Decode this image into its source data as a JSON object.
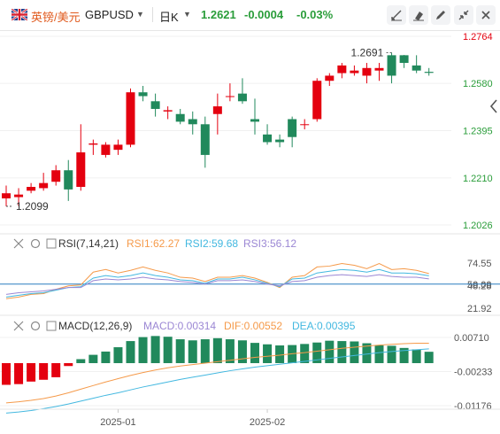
{
  "toolbar": {
    "name": "英镑/美元",
    "symbol": "GBPUSD",
    "period": "日K",
    "price": "1.2621",
    "change": "-0.0004",
    "change_pct": "-0.03%",
    "icons": [
      "draw-tool-icon",
      "eraser-icon",
      "pencil-icon",
      "collapse-icon",
      "close-icon"
    ]
  },
  "colors": {
    "up": "#e4000f",
    "down": "#21895c",
    "rsi1": "#f59a4a",
    "rsi2": "#43b8e0",
    "rsi3": "#9b87d4",
    "macd": "#9b87d4",
    "dif": "#f59a4a",
    "dea": "#43b8e0",
    "price_axis": "#e4000f",
    "axis_text": "#2a9d3a"
  },
  "price_panel": {
    "y_ticks": [
      "1.2764",
      "1.2580",
      "1.2395",
      "1.2210",
      "1.2026"
    ],
    "ylim": [
      1.2026,
      1.2764
    ],
    "high_label": "1.2691",
    "low_label": "1.2099"
  },
  "rsi_panel": {
    "title": "RSI(7,14,21)",
    "rsi1_label": "RSI1:62.27",
    "rsi2_label": "RSI2:59.68",
    "rsi3_label": "RSI3:56.12",
    "y_ticks": [
      "74.55",
      "50.00",
      "48.28",
      "21.92"
    ],
    "ylim": [
      21.92,
      74.55
    ],
    "midline": 50
  },
  "macd_panel": {
    "title": "MACD(12,26,9)",
    "macd_label": "MACD:0.00314",
    "dif_label": "DIF:0.00552",
    "dea_label": "DEA:0.00395",
    "y_ticks": [
      "0.00710",
      "-0.00233",
      "-0.01176"
    ],
    "ylim": [
      -0.01176,
      0.0071
    ]
  },
  "x_axis": {
    "labels": [
      "2025-01",
      "2025-02"
    ],
    "label_index": [
      9,
      21
    ]
  },
  "chart_data": {
    "type": "candlestick",
    "series": [
      {
        "name": "K",
        "values": [
          [
            1.213,
            1.218,
            1.2099,
            1.215
          ],
          [
            1.2135,
            1.217,
            1.21,
            1.2145
          ],
          [
            1.216,
            1.219,
            1.215,
            1.2175
          ],
          [
            1.217,
            1.223,
            1.216,
            1.219
          ],
          [
            1.2195,
            1.226,
            1.218,
            1.224
          ],
          [
            1.224,
            1.228,
            1.212,
            1.2165
          ],
          [
            1.2175,
            1.242,
            1.216,
            1.231
          ],
          [
            1.234,
            1.236,
            1.23,
            1.2345
          ],
          [
            1.23,
            1.235,
            1.229,
            1.234
          ],
          [
            1.232,
            1.236,
            1.23,
            1.234
          ],
          [
            1.234,
            1.256,
            1.233,
            1.2545
          ],
          [
            1.2545,
            1.257,
            1.251,
            1.253
          ],
          [
            1.251,
            1.254,
            1.245,
            1.248
          ],
          [
            1.247,
            1.249,
            1.244,
            1.2475
          ],
          [
            1.246,
            1.248,
            1.242,
            1.243
          ],
          [
            1.244,
            1.247,
            1.238,
            1.242
          ],
          [
            1.242,
            1.245,
            1.225,
            1.23
          ],
          [
            1.246,
            1.254,
            1.238,
            1.249
          ],
          [
            1.253,
            1.258,
            1.251,
            1.253
          ],
          [
            1.254,
            1.26,
            1.25,
            1.251
          ],
          [
            1.244,
            1.252,
            1.238,
            1.243
          ],
          [
            1.238,
            1.242,
            1.234,
            1.235
          ],
          [
            1.236,
            1.238,
            1.233,
            1.235
          ],
          [
            1.244,
            1.245,
            1.233,
            1.237
          ],
          [
            1.242,
            1.244,
            1.24,
            1.242
          ],
          [
            1.244,
            1.26,
            1.243,
            1.259
          ],
          [
            1.259,
            1.262,
            1.257,
            1.261
          ],
          [
            1.262,
            1.266,
            1.26,
            1.265
          ],
          [
            1.262,
            1.265,
            1.261,
            1.263
          ],
          [
            1.261,
            1.266,
            1.258,
            1.264
          ],
          [
            1.263,
            1.266,
            1.259,
            1.264
          ],
          [
            1.269,
            1.27,
            1.258,
            1.261
          ],
          [
            1.269,
            1.2691,
            1.264,
            1.266
          ],
          [
            1.265,
            1.269,
            1.262,
            1.263
          ],
          [
            1.2625,
            1.264,
            1.261,
            1.2621
          ]
        ]
      },
      {
        "name": "RSI1",
        "values": [
          33,
          35,
          38,
          39,
          44,
          48,
          49,
          64,
          67,
          63,
          66,
          70,
          66,
          63,
          58,
          57,
          53,
          58,
          58,
          60,
          57,
          52,
          46,
          58,
          60,
          70,
          71,
          74,
          72,
          68,
          74,
          67,
          68,
          66,
          62.27
        ]
      },
      {
        "name": "RSI2",
        "values": [
          35,
          37,
          39,
          40,
          43,
          46,
          47,
          57,
          60,
          58,
          60,
          63,
          60,
          58,
          55,
          54,
          51,
          56,
          56,
          58,
          55,
          51,
          47,
          56,
          57,
          63,
          65,
          67,
          66,
          64,
          67,
          63,
          63,
          62,
          59.68
        ]
      },
      {
        "name": "RSI3",
        "values": [
          38,
          40,
          41,
          42,
          44,
          46,
          46,
          54,
          56,
          55,
          56,
          58,
          56,
          55,
          53,
          52,
          50,
          54,
          54,
          55,
          53,
          50,
          48,
          53,
          54,
          58,
          60,
          61,
          60,
          59,
          61,
          59,
          58,
          58,
          56.12
        ]
      },
      {
        "name": "MACD",
        "values": [
          -0.006,
          -0.0058,
          -0.0051,
          -0.0046,
          -0.0039,
          -0.0008,
          0.0011,
          0.0023,
          0.0032,
          0.0044,
          0.0061,
          0.0072,
          0.0075,
          0.0073,
          0.0066,
          0.0063,
          0.0066,
          0.0069,
          0.0066,
          0.0063,
          0.0056,
          0.0052,
          0.0049,
          0.005,
          0.0053,
          0.0057,
          0.0062,
          0.0061,
          0.006,
          0.0055,
          0.0049,
          0.0048,
          0.0042,
          0.0038,
          0.00314
        ]
      },
      {
        "name": "DIF",
        "values": [
          -0.011,
          -0.0107,
          -0.0103,
          -0.0098,
          -0.0091,
          -0.0082,
          -0.0072,
          -0.0062,
          -0.0052,
          -0.0043,
          -0.0034,
          -0.0026,
          -0.0019,
          -0.0013,
          -0.0008,
          -0.0004,
          0.0,
          0.0004,
          0.0008,
          0.0012,
          0.0016,
          0.0019,
          0.0022,
          0.0026,
          0.0029,
          0.0033,
          0.0037,
          0.0041,
          0.0044,
          0.0047,
          0.005,
          0.0052,
          0.0054,
          0.0055,
          0.00552
        ]
      },
      {
        "name": "DEA",
        "values": [
          -0.0138,
          -0.0135,
          -0.0131,
          -0.0126,
          -0.012,
          -0.0113,
          -0.0105,
          -0.0097,
          -0.0089,
          -0.0082,
          -0.0074,
          -0.0066,
          -0.0059,
          -0.0052,
          -0.0045,
          -0.0039,
          -0.0033,
          -0.0027,
          -0.0021,
          -0.0016,
          -0.0011,
          -0.0007,
          -0.0003,
          0.0001,
          0.0005,
          0.0009,
          0.0013,
          0.0017,
          0.0021,
          0.0025,
          0.0029,
          0.0032,
          0.0035,
          0.0037,
          0.00395
        ]
      }
    ]
  }
}
